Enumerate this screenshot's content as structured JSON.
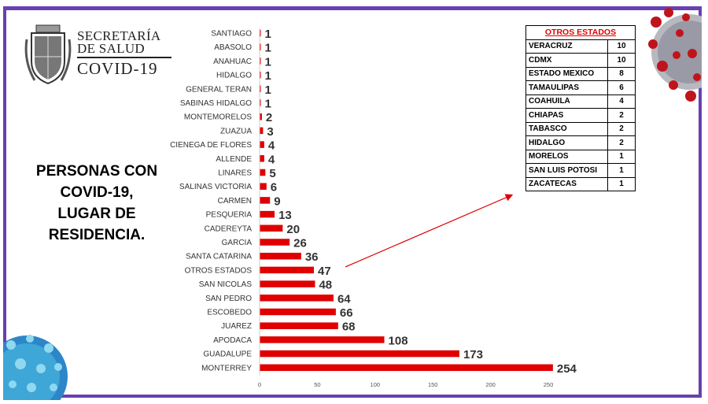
{
  "header": {
    "line1": "SECRETARÍA",
    "line2": "DE SALUD",
    "line3": "COVID-19"
  },
  "side_title": {
    "lines": [
      "PERSONAS CON",
      "COVID-19,",
      "LUGAR DE",
      "RESIDENCIA."
    ]
  },
  "colors": {
    "bar": "#e00000",
    "frame": "#6a3fb0",
    "arrow": "#e00000"
  },
  "chart_data": {
    "type": "bar",
    "orientation": "horizontal",
    "categories": [
      "SANTIAGO",
      "ABASOLO",
      "ANAHUAC",
      "HIDALGO",
      "GENERAL TERAN",
      "SABINAS HIDALGO",
      "MONTEMORELOS",
      "ZUAZUA",
      "CIENEGA DE FLORES",
      "ALLENDE",
      "LINARES",
      "SALINAS VICTORIA",
      "CARMEN",
      "PESQUERIA",
      "CADEREYTA",
      "GARCIA",
      "SANTA CATARINA",
      "OTROS ESTADOS",
      "SAN NICOLAS",
      "SAN PEDRO",
      "ESCOBEDO",
      "JUAREZ",
      "APODACA",
      "GUADALUPE",
      "MONTERREY"
    ],
    "values": [
      1,
      1,
      1,
      1,
      1,
      1,
      2,
      3,
      4,
      4,
      5,
      6,
      9,
      13,
      20,
      26,
      36,
      47,
      48,
      64,
      66,
      68,
      108,
      173,
      254
    ],
    "xlim": [
      0,
      250
    ],
    "xticks": [
      0,
      50,
      100,
      150,
      200,
      250
    ],
    "legend": "none",
    "grid": false
  },
  "otros_estados": {
    "title": "OTROS ESTADOS",
    "rows": [
      {
        "name": "VERACRUZ",
        "value": "10"
      },
      {
        "name": "CDMX",
        "value": "10"
      },
      {
        "name": "ESTADO MEXICO",
        "value": "8"
      },
      {
        "name": "TAMAULIPAS",
        "value": "6"
      },
      {
        "name": "COAHUILA",
        "value": "4"
      },
      {
        "name": "CHIAPAS",
        "value": "2"
      },
      {
        "name": "TABASCO",
        "value": "2"
      },
      {
        "name": "HIDALGO",
        "value": "2"
      },
      {
        "name": "MORELOS",
        "value": "1"
      },
      {
        "name": "SAN LUIS POTOSI",
        "value": "1"
      },
      {
        "name": "ZACATECAS",
        "value": "1"
      }
    ]
  }
}
